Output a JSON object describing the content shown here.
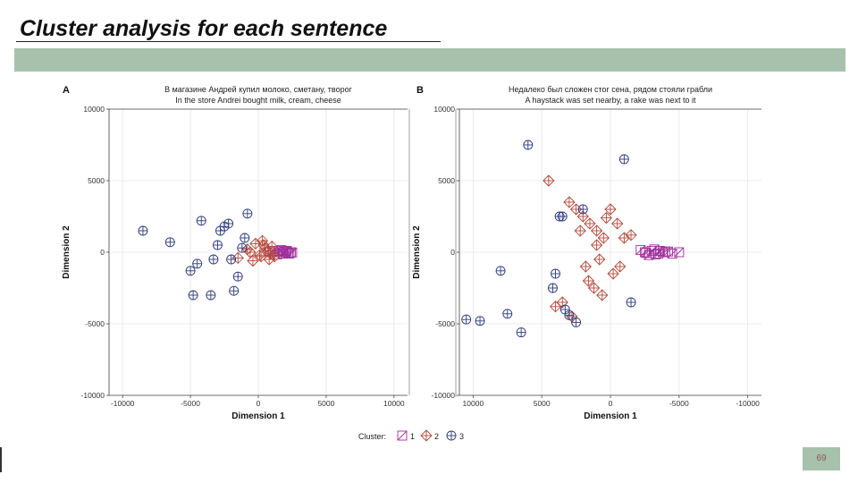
{
  "slide": {
    "title": "Cluster analysis for each sentence",
    "page_number": "69"
  },
  "colors": {
    "band": "#a8c1ad",
    "cluster1": "#a0309a",
    "cluster2": "#b24a3a",
    "cluster3": "#2b3a7a",
    "grid": "#e6e6e6"
  },
  "chart_data": [
    {
      "type": "scatter",
      "panel": "A",
      "title": "В магазине Андрей купил молоко, сметану, творог",
      "subtitle": "In the store Andrei bought milk, cream, cheese",
      "xlabel": "Dimension 1",
      "ylabel": "Dimension 2",
      "xlim": [
        -11000,
        11000
      ],
      "ylim": [
        -10000,
        10000
      ],
      "xticks": [
        -10000,
        -5000,
        0,
        5000,
        10000
      ],
      "xtick_labels": [
        "-10000",
        "-5000",
        "0",
        "5000",
        "10000"
      ],
      "yticks": [
        10000,
        5000,
        0,
        -5000,
        -10000
      ],
      "ytick_labels": [
        "10000",
        "5000",
        "0",
        "-5000",
        "-10000"
      ],
      "series": [
        {
          "cluster": "1",
          "x": [
            1200,
            1500,
            1800,
            2000,
            2200,
            2400,
            1400,
            1700,
            2100,
            900,
            2300,
            1600,
            1900,
            2500,
            1100
          ],
          "y": [
            0,
            100,
            -100,
            50,
            -50,
            0,
            -150,
            150,
            100,
            0,
            -100,
            0,
            50,
            -20,
            80
          ]
        },
        {
          "cluster": "2",
          "x": [
            -1500,
            -800,
            -200,
            200,
            500,
            800,
            1000,
            -400,
            300,
            700,
            -600,
            100,
            1200,
            400,
            900
          ],
          "y": [
            -400,
            200,
            600,
            -300,
            300,
            -500,
            400,
            -600,
            800,
            100,
            0,
            -200,
            -300,
            500,
            -100
          ]
        },
        {
          "cluster": "3",
          "x": [
            -8500,
            -6500,
            -5000,
            -4800,
            -4200,
            -3500,
            -3300,
            -2800,
            -2500,
            -2200,
            -1800,
            -1500,
            -1200,
            -800,
            -3000,
            -2000,
            -1000,
            -4500
          ],
          "y": [
            1500,
            700,
            -1300,
            -3000,
            2200,
            -3000,
            -500,
            1500,
            1800,
            2000,
            -2700,
            -1700,
            300,
            2700,
            500,
            -500,
            1000,
            -800
          ]
        }
      ]
    },
    {
      "type": "scatter",
      "panel": "B",
      "title": "Недалеко был сложен стог сена, рядом стояли грабли",
      "subtitle": "A haystack was set nearby, a rake was next to it",
      "xlabel": "Dimension 1",
      "ylabel": "Dimension 2",
      "xlim": [
        11000,
        -11000
      ],
      "ylim": [
        -10000,
        10000
      ],
      "xticks": [
        10000,
        5000,
        0,
        -5000,
        -10000
      ],
      "xtick_labels": [
        "10000",
        "5000",
        "0",
        "-5000",
        "-10000"
      ],
      "yticks": [
        10000,
        5000,
        0,
        -5000,
        -10000
      ],
      "ytick_labels": [
        "10000",
        "5000",
        "0",
        "-5000",
        "-10000"
      ],
      "series": [
        {
          "cluster": "1",
          "x": [
            -2500,
            -3000,
            -3500,
            -4000,
            -2800,
            -3200,
            -3800,
            -4500,
            -2200,
            -5000,
            -3600,
            -2600,
            -4200,
            -3300
          ],
          "y": [
            0,
            100,
            -100,
            50,
            -200,
            200,
            0,
            -100,
            150,
            0,
            100,
            -50,
            50,
            -150
          ]
        },
        {
          "cluster": "2",
          "x": [
            4500,
            3000,
            2500,
            1500,
            1000,
            500,
            -500,
            -1000,
            0,
            2000,
            1800,
            1200,
            600,
            -200,
            3500,
            2800,
            1600,
            800,
            -700,
            4000,
            2200,
            1000,
            -1500,
            300
          ],
          "y": [
            5000,
            3500,
            3000,
            2000,
            1500,
            1000,
            2000,
            1000,
            3000,
            2500,
            -1000,
            -2500,
            -3000,
            -1500,
            -3500,
            -4500,
            -2000,
            -500,
            -1000,
            -3800,
            1500,
            500,
            1200,
            2400
          ]
        },
        {
          "cluster": "3",
          "x": [
            6000,
            -1000,
            10500,
            9500,
            8000,
            7500,
            6500,
            4000,
            3500,
            3000,
            2500,
            -1500,
            4200,
            3700,
            3300,
            2000
          ],
          "y": [
            7500,
            6500,
            -4700,
            -4800,
            -1300,
            -4300,
            -5600,
            -1500,
            2500,
            -4400,
            -4900,
            -3500,
            -2500,
            2500,
            -4000,
            3000
          ]
        }
      ]
    }
  ],
  "legend": {
    "label": "Cluster:",
    "items": [
      "1",
      "2",
      "3"
    ]
  }
}
